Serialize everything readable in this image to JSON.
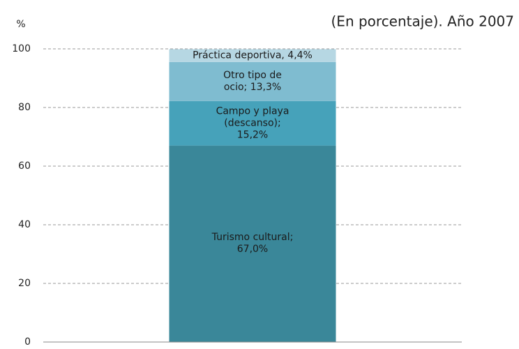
{
  "chart_data": {
    "type": "stacked_bar",
    "title": "(En porcentaje). Año 2007",
    "y_label": "%",
    "categories": [
      null
    ],
    "series": [
      {
        "color": "#3a8799",
        "values": [
          67.0
        ],
        "value_labels": [
          "Turismo cultural; 67,0%"
        ]
      },
      {
        "color": "#46a2ba",
        "values": [
          15.2
        ],
        "value_labels": [
          "Campo y playa (descanso); 15,2%"
        ]
      },
      {
        "color": "#7fbcd0",
        "values": [
          13.3
        ],
        "value_labels": [
          "Otro tipo de ocio; 13,3%"
        ]
      },
      {
        "color": "#b6d7e3",
        "values": [
          4.4
        ],
        "value_labels": [
          "Práctica deportiva, 4,4%"
        ]
      }
    ],
    "ylim": [
      0,
      100
    ],
    "yticks": [
      0,
      20,
      40,
      60,
      80,
      100
    ],
    "grid": true
  }
}
